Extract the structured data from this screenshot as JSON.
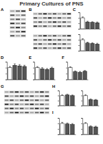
{
  "figure": {
    "title": "Primary Cultures of PNS",
    "panel_labels": [
      "A",
      "B",
      "C",
      "D",
      "E",
      "F",
      "G",
      "H",
      "I"
    ]
  },
  "chart_data": [
    {
      "type": "bar",
      "categories": [
        null,
        null,
        null,
        null
      ],
      "values": [
        100,
        62,
        58,
        55
      ],
      "errors": [
        8,
        7,
        6,
        7
      ],
      "colors": [
        "#ffffff",
        "#555555",
        "#555555",
        "#555555"
      ],
      "ylim": [
        0,
        150
      ],
      "yticks": [
        0,
        50,
        100,
        150
      ],
      "tick_labels": false
    },
    {
      "type": "bar",
      "categories": [
        null,
        null,
        null,
        null
      ],
      "values": [
        100,
        70,
        66,
        60
      ],
      "errors": [
        9,
        8,
        7,
        8
      ],
      "colors": [
        "#ffffff",
        "#555555",
        "#555555",
        "#555555"
      ],
      "ylim": [
        0,
        150
      ],
      "yticks": [
        0,
        50,
        100,
        150
      ],
      "tick_labels": false
    },
    {
      "type": "bar",
      "categories": [
        null,
        null,
        null,
        null
      ],
      "values": [
        100,
        120,
        115,
        110
      ],
      "errors": [
        10,
        12,
        11,
        10
      ],
      "colors": [
        "#ffffff",
        "#555555",
        "#555555",
        "#555555"
      ],
      "ylim": [
        0,
        150
      ],
      "yticks": [
        0,
        50,
        100,
        150
      ],
      "tick_labels": false
    },
    {
      "type": "bar",
      "categories": [
        null,
        null,
        null,
        null
      ],
      "values": [
        100,
        90,
        85,
        95
      ],
      "errors": [
        9,
        10,
        8,
        9
      ],
      "colors": [
        "#ffffff",
        "#555555",
        "#555555",
        "#555555"
      ],
      "ylim": [
        0,
        150
      ],
      "yticks": [
        0,
        50,
        100,
        150
      ],
      "tick_labels": false
    },
    {
      "type": "bar",
      "categories": [
        null,
        null,
        null,
        null
      ],
      "values": [
        100,
        65,
        60,
        70
      ],
      "errors": [
        8,
        7,
        8,
        6
      ],
      "colors": [
        "#ffffff",
        "#555555",
        "#555555",
        "#555555"
      ],
      "ylim": [
        0,
        150
      ],
      "yticks": [
        0,
        50,
        100,
        150
      ],
      "tick_labels": false
    },
    {
      "type": "bar",
      "categories": [
        null,
        null,
        null
      ],
      "values": [
        100,
        105,
        98
      ],
      "errors": [
        8,
        9,
        8
      ],
      "colors": [
        "#ffffff",
        "#555555",
        "#555555"
      ],
      "ylim": [
        0,
        150
      ],
      "yticks": [
        0,
        50,
        100,
        150
      ],
      "tick_labels": false
    },
    {
      "type": "bar",
      "categories": [
        null,
        null,
        null
      ],
      "values": [
        100,
        60,
        55
      ],
      "errors": [
        9,
        7,
        6
      ],
      "colors": [
        "#ffffff",
        "#555555",
        "#555555"
      ],
      "ylim": [
        0,
        150
      ],
      "yticks": [
        0,
        50,
        100,
        150
      ],
      "tick_labels": false
    },
    {
      "type": "bar",
      "categories": [
        null,
        null,
        null
      ],
      "values": [
        100,
        95,
        90
      ],
      "errors": [
        10,
        9,
        9
      ],
      "colors": [
        "#ffffff",
        "#555555",
        "#555555"
      ],
      "ylim": [
        0,
        150
      ],
      "yticks": [
        0,
        50,
        100,
        150
      ],
      "tick_labels": false
    },
    {
      "type": "bar",
      "categories": [
        null,
        null,
        null
      ],
      "values": [
        100,
        70,
        68
      ],
      "errors": [
        8,
        8,
        7
      ],
      "colors": [
        "#ffffff",
        "#555555",
        "#555555"
      ],
      "ylim": [
        0,
        150
      ],
      "yticks": [
        0,
        50,
        100,
        150
      ],
      "tick_labels": false
    }
  ]
}
